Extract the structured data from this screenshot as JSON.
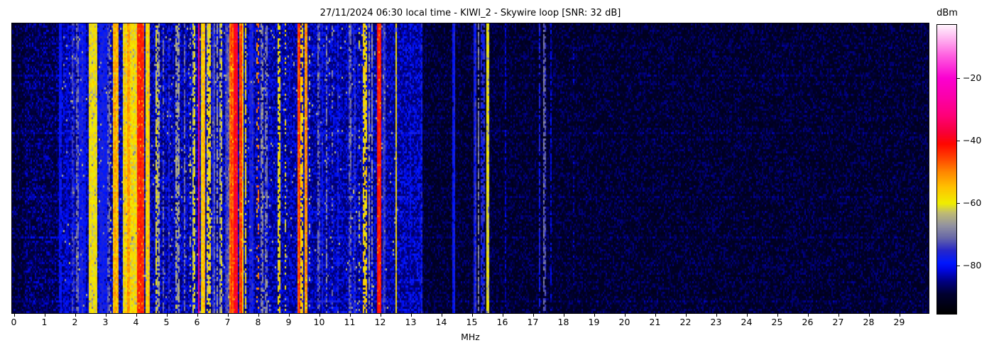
{
  "title": "27/11/2024 06:30 local time - KIWI_2 - Skywire loop [SNR: 32 dB]",
  "x_axis": {
    "label": "MHz",
    "ticks": [
      0,
      1,
      2,
      3,
      4,
      5,
      6,
      7,
      8,
      9,
      10,
      11,
      12,
      13,
      14,
      15,
      16,
      17,
      18,
      19,
      20,
      21,
      22,
      23,
      24,
      25,
      26,
      27,
      28,
      29
    ]
  },
  "colorbar": {
    "label": "dBm",
    "ticks": [
      -20,
      -40,
      -60,
      -80
    ],
    "vmax": -3,
    "vmin": -95.2
  },
  "chart_data": {
    "type": "heatmap",
    "title": "27/11/2024 06:30 local time - KIWI_2 - Skywire loop [SNR: 32 dB]",
    "xlabel": "MHz",
    "colorbar_label": "dBm",
    "x_range_mhz": [
      -0.06,
      29.97
    ],
    "value_range_dbm": [
      -95.2,
      -3
    ],
    "legend_position": "right-colorbar",
    "grid": false,
    "colormap_stops": [
      [
        -95.2,
        "#000000"
      ],
      [
        -89,
        "#000030"
      ],
      [
        -85,
        "#000080"
      ],
      [
        -81,
        "#0008e8"
      ],
      [
        -79,
        "#0018ff"
      ],
      [
        -75,
        "#2828c8"
      ],
      [
        -71,
        "#6868a8"
      ],
      [
        -67,
        "#9494a0"
      ],
      [
        -63,
        "#c0bc74"
      ],
      [
        -60,
        "#f0ee00"
      ],
      [
        -55,
        "#ffc400"
      ],
      [
        -50,
        "#ff8800"
      ],
      [
        -45,
        "#ff3c00"
      ],
      [
        -41,
        "#ff0800"
      ],
      [
        -37,
        "#f8003c"
      ],
      [
        -32,
        "#ff0078"
      ],
      [
        -26,
        "#fc00aa"
      ],
      [
        -20,
        "#fb00d1"
      ],
      [
        -13,
        "#ff5ce0"
      ],
      [
        -7,
        "#ffbaf2"
      ],
      [
        -3,
        "#fff3fd"
      ]
    ],
    "background_regions_format": "[f0_mhz, f1_mhz, noise_floor_dbm, speckle_probability, speckle_amp_db]",
    "background_regions": [
      [
        -0.1,
        0.35,
        -91,
        0.35,
        5
      ],
      [
        0.35,
        1.55,
        -90,
        0.45,
        6
      ],
      [
        1.55,
        13.4,
        -87,
        0.55,
        7
      ],
      [
        13.4,
        30.0,
        -92,
        0.45,
        5
      ]
    ],
    "row_streaks": {
      "probability": 0.09,
      "boost_min_db": 2.5,
      "boost_max_db": 7
    },
    "band_format": "[f0_mhz, f1_mhz, level_dbm, variation_db, mode]",
    "bands": [
      [
        1.5,
        1.56,
        -79,
        3,
        "solid"
      ],
      [
        1.72,
        1.78,
        -83,
        3,
        "dashed"
      ],
      [
        1.9,
        2.0,
        -76,
        4,
        "dashed"
      ],
      [
        2.02,
        2.12,
        -73,
        5,
        "dashed"
      ],
      [
        2.14,
        2.36,
        -78,
        4,
        "solid"
      ],
      [
        2.2,
        2.24,
        -70,
        4,
        "dashed"
      ],
      [
        2.45,
        2.74,
        -60,
        4,
        "solid"
      ],
      [
        2.78,
        3.04,
        -78,
        3,
        "solid"
      ],
      [
        3.08,
        3.14,
        -70,
        5,
        "dashed"
      ],
      [
        3.17,
        3.22,
        -63,
        6,
        "sparse"
      ],
      [
        3.26,
        3.44,
        -54,
        5,
        "solid"
      ],
      [
        3.58,
        4.02,
        -58,
        5,
        "solid"
      ],
      [
        3.72,
        3.78,
        -52,
        4,
        "solid"
      ],
      [
        4.04,
        4.28,
        -44,
        3,
        "solid"
      ],
      [
        4.3,
        4.44,
        -57,
        4,
        "solid"
      ],
      [
        4.62,
        4.76,
        -63,
        5,
        "dashed"
      ],
      [
        4.88,
        4.94,
        -72,
        5,
        "dashed"
      ],
      [
        5.06,
        5.12,
        -74,
        4,
        "dashed"
      ],
      [
        5.3,
        5.42,
        -66,
        5,
        "dashed"
      ],
      [
        5.55,
        5.6,
        -70,
        4,
        "dashed"
      ],
      [
        5.74,
        5.8,
        -64,
        5,
        "sparse"
      ],
      [
        5.86,
        5.92,
        -61,
        4,
        "dashed"
      ],
      [
        6.04,
        6.09,
        -31,
        3,
        "solid"
      ],
      [
        6.12,
        6.28,
        -55,
        4,
        "solid"
      ],
      [
        6.3,
        6.44,
        -60,
        5,
        "dashed"
      ],
      [
        6.48,
        6.6,
        -74,
        4,
        "solid"
      ],
      [
        6.64,
        6.7,
        -68,
        4,
        "dashed"
      ],
      [
        6.74,
        6.82,
        -64,
        5,
        "dashed"
      ],
      [
        6.94,
        7.06,
        -74,
        4,
        "solid"
      ],
      [
        7.08,
        7.18,
        -47,
        4,
        "solid"
      ],
      [
        7.2,
        7.36,
        -39,
        3,
        "solid"
      ],
      [
        7.38,
        7.46,
        -46,
        4,
        "solid"
      ],
      [
        7.47,
        7.53,
        -56,
        5,
        "solid"
      ],
      [
        7.55,
        7.62,
        -61,
        5,
        "dashed"
      ],
      [
        7.7,
        7.85,
        -76,
        4,
        "solid"
      ],
      [
        7.96,
        8.04,
        -50,
        5,
        "sparse"
      ],
      [
        8.1,
        8.16,
        -70,
        5,
        "dashed"
      ],
      [
        8.24,
        8.3,
        -72,
        5,
        "dashed"
      ],
      [
        8.64,
        8.72,
        -59,
        4,
        "dashed"
      ],
      [
        8.88,
        8.94,
        -62,
        6,
        "sparse"
      ],
      [
        9.28,
        9.38,
        -46,
        4,
        "solid"
      ],
      [
        9.4,
        9.5,
        -58,
        5,
        "dashed"
      ],
      [
        9.52,
        9.62,
        -50,
        4,
        "solid"
      ],
      [
        9.66,
        9.72,
        -62,
        5,
        "sparse"
      ],
      [
        9.94,
        10.02,
        -73,
        5,
        "dashed"
      ],
      [
        10.06,
        10.14,
        -76,
        4,
        "dashed"
      ],
      [
        10.2,
        10.28,
        -72,
        5,
        "dashed"
      ],
      [
        10.4,
        10.46,
        -70,
        5,
        "sparse"
      ],
      [
        10.6,
        10.66,
        -78,
        4,
        "dashed"
      ],
      [
        10.96,
        11.04,
        -70,
        5,
        "dashed"
      ],
      [
        11.12,
        11.18,
        -76,
        4,
        "dashed"
      ],
      [
        11.3,
        11.36,
        -64,
        5,
        "sparse"
      ],
      [
        11.44,
        11.56,
        -59,
        5,
        "dashed"
      ],
      [
        11.6,
        11.66,
        -66,
        4,
        "dashed"
      ],
      [
        11.7,
        11.76,
        -68,
        4,
        "dashed"
      ],
      [
        11.9,
        12.04,
        -42,
        3,
        "solid"
      ],
      [
        12.06,
        12.16,
        -76,
        4,
        "solid"
      ],
      [
        12.48,
        12.54,
        -58,
        4,
        "solid"
      ],
      [
        12.96,
        13.02,
        -80,
        4,
        "dashed"
      ],
      [
        13.3,
        13.38,
        -80,
        5,
        "dashed"
      ],
      [
        14.38,
        14.44,
        -78,
        3,
        "solid"
      ],
      [
        15.08,
        15.16,
        -76,
        4,
        "solid"
      ],
      [
        15.18,
        15.24,
        -68,
        4,
        "dashed"
      ],
      [
        15.28,
        15.42,
        -76,
        4,
        "dashed"
      ],
      [
        15.5,
        15.58,
        -60,
        3,
        "solid"
      ],
      [
        16.08,
        16.14,
        -82,
        4,
        "dashed"
      ],
      [
        17.18,
        17.26,
        -76,
        4,
        "dashed"
      ],
      [
        17.36,
        17.44,
        -72,
        4,
        "dashed"
      ],
      [
        17.56,
        17.62,
        -80,
        4,
        "dashed"
      ],
      [
        18.3,
        18.36,
        -84,
        4,
        "sparse"
      ]
    ]
  }
}
